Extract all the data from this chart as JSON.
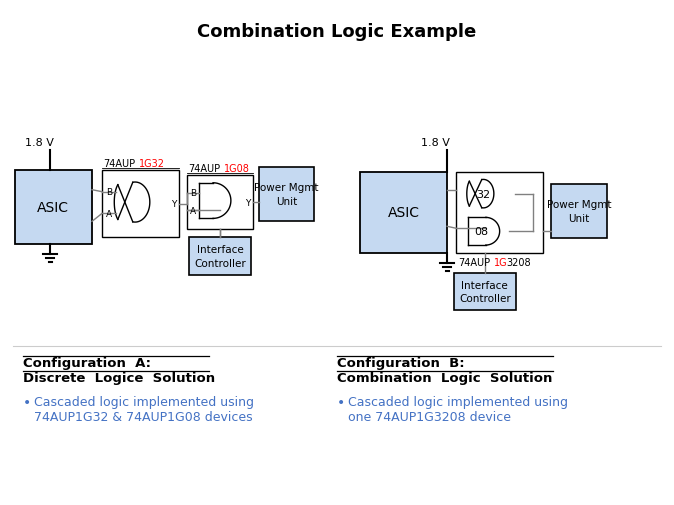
{
  "title": "Combination Logic Example",
  "title_fontsize": 13,
  "title_fontweight": "bold",
  "bg_color": "#ffffff",
  "box_fill": "#c5d9f1",
  "box_edge": "#000000",
  "text_color": "#000000",
  "red_color": "#FF0000",
  "bullet_color": "#4472C4",
  "section_A_title1": "Configuration  A:",
  "section_A_title2": "Discrete  Logice  Solution",
  "section_B_title1": "Configuration  B:",
  "section_B_title2": "Combination  Logic  Solution",
  "bullet_A_line1": "Cascaded logic implemented using",
  "bullet_A_line2": "74AUP1G32 & 74AUP1G08 devices",
  "bullet_B_line1": "Cascaded logic implemented using",
  "bullet_B_line2": "one 74AUP1G3208 device"
}
